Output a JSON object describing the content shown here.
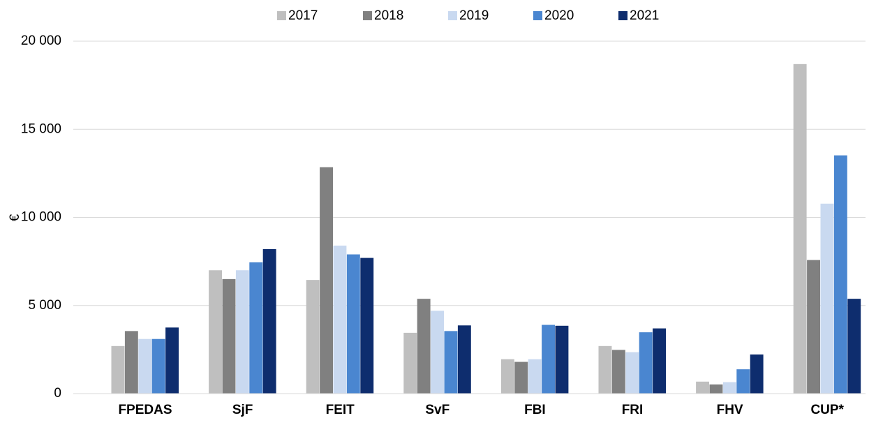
{
  "chart_data": {
    "type": "bar",
    "y_label": "€",
    "categories": [
      "FPEDAS",
      "SjF",
      "FEIT",
      "SvF",
      "FBI",
      "FRI",
      "FHV",
      "CUP*"
    ],
    "series": [
      {
        "name": "2017",
        "color": "#bfbfbf",
        "values": [
          2700,
          7000,
          6450,
          3450,
          1950,
          2700,
          680,
          18700
        ]
      },
      {
        "name": "2018",
        "color": "#808080",
        "values": [
          3550,
          6500,
          12850,
          5380,
          1800,
          2480,
          520,
          7580
        ]
      },
      {
        "name": "2019",
        "color": "#c9d9f0",
        "values": [
          3100,
          7000,
          8400,
          4700,
          1950,
          2350,
          650,
          10780
        ]
      },
      {
        "name": "2020",
        "color": "#4a86d0",
        "values": [
          3100,
          7450,
          7900,
          3550,
          3900,
          3480,
          1380,
          13520
        ]
      },
      {
        "name": "2021",
        "color": "#0e2d6e",
        "values": [
          3750,
          8200,
          7700,
          3870,
          3850,
          3700,
          2220,
          5380
        ]
      }
    ],
    "ylim": [
      0,
      20000
    ],
    "yticks": [
      0,
      {
        "value": 5000,
        "label": "5 000"
      },
      {
        "value": 10000,
        "label": "10 000"
      },
      {
        "value": 15000,
        "label": "15 000"
      },
      {
        "value": 20000,
        "label": "20 000"
      }
    ],
    "grid": true,
    "legend": "top"
  }
}
